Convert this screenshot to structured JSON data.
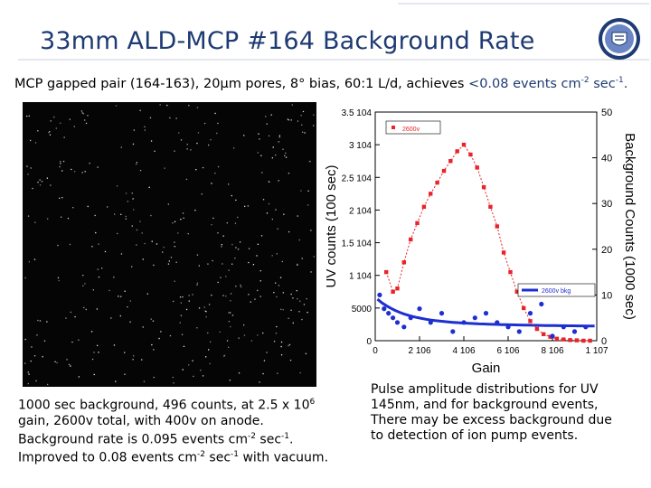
{
  "title": "33mm ALD-MCP #164 Background Rate",
  "subtitle": {
    "before": "MCP gapped pair (164-163), 20µm pores, 8° bias, 60:1 L/d, achieves ",
    "hl_a": "<0.08 events cm",
    "hl_sup1": "-2",
    "hl_b": " sec",
    "hl_sup2": "-1",
    "hl_c": "."
  },
  "caption_left": {
    "l1a": "1000 sec background, 496 counts, at 2.5 x 10",
    "l1sup": "6",
    "l2": "gain, 2600v total, with 400v on anode.",
    "l3a": "Background rate is  0.095 events cm",
    "l3sup1": "-2",
    "l3b": " sec",
    "l3sup2": "-1",
    "l3c": ".",
    "l4a": "Improved to 0.08 events cm",
    "l4sup1": "-2",
    "l4b": " sec",
    "l4sup2": "-1",
    "l4c": " with vacuum."
  },
  "caption_right": {
    "l1": "Pulse amplitude distributions for UV",
    "l2": "145nm, and for background events,",
    "l3": "There may be excess background due",
    "l4": "to detection of ion pump events."
  },
  "colors": {
    "title": "#1f3b73",
    "uv_series": "#e8232a",
    "bkg_series": "#1d2fd0",
    "image_bg": "#050505"
  },
  "chart_data": {
    "type": "scatter",
    "xlabel": "Gain",
    "ylabel": "UV counts (100 sec)",
    "y2label": "Background Counts (1000 sec)",
    "x_ticks": [
      "0",
      "2 10^6",
      "4 10^6",
      "6 10^6",
      "8 10^6",
      "1 10^7"
    ],
    "y_ticks": [
      "0",
      "5000",
      "1 10^4",
      "1.5 10^4",
      "2 10^4",
      "2.5 10^4",
      "3 10^4",
      "3.5 10^4"
    ],
    "y2_ticks": [
      "0",
      "10",
      "20",
      "30",
      "40",
      "50"
    ],
    "xlim": [
      0,
      10000000
    ],
    "ylim": [
      0,
      35000
    ],
    "y2lim": [
      0,
      50
    ],
    "legend": [
      "2600v",
      "2600v bkg"
    ],
    "series": [
      {
        "name": "2600v",
        "axis": "left",
        "x": [
          500000,
          800000,
          1000000,
          1300000,
          1600000,
          1900000,
          2200000,
          2500000,
          2800000,
          3100000,
          3400000,
          3700000,
          4000000,
          4300000,
          4600000,
          4900000,
          5200000,
          5500000,
          5800000,
          6100000,
          6400000,
          6700000,
          7000000,
          7300000,
          7600000,
          7900000,
          8200000,
          8500000,
          8800000,
          9100000,
          9400000,
          9700000
        ],
        "y": [
          10500,
          7500,
          8000,
          12000,
          15500,
          18000,
          20500,
          22500,
          24200,
          26000,
          27500,
          29000,
          30000,
          28500,
          26500,
          23500,
          20500,
          17500,
          13500,
          10500,
          7500,
          5000,
          3000,
          1800,
          1000,
          600,
          300,
          200,
          100,
          50,
          0,
          0
        ]
      },
      {
        "name": "2600v bkg",
        "axis": "right",
        "x": [
          200000,
          400000,
          600000,
          800000,
          1000000,
          1300000,
          1600000,
          2000000,
          2500000,
          3000000,
          3500000,
          4000000,
          4500000,
          5000000,
          5500000,
          6000000,
          6500000,
          7000000,
          7500000,
          8000000,
          8500000,
          9000000,
          9500000
        ],
        "y": [
          10,
          7,
          6,
          5,
          4,
          3,
          5,
          7,
          4,
          6,
          2,
          4,
          5,
          6,
          4,
          3,
          2,
          6,
          8,
          1,
          3,
          2,
          3
        ]
      }
    ]
  }
}
